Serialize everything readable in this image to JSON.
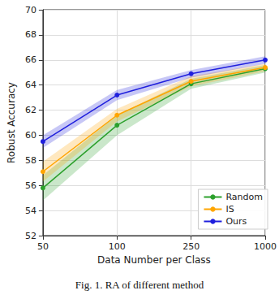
{
  "chart_data": {
    "type": "line",
    "caption": "Fig. 1. RA of different method",
    "x_label": "Data Number per Class",
    "y_label": "Robust Accuracy",
    "categories": [
      "50",
      "100",
      "250",
      "1000"
    ],
    "series": [
      {
        "name": "Random",
        "color": "#2ca02c",
        "values": [
          55.8,
          60.8,
          64.1,
          65.3
        ],
        "errors": [
          1.0,
          0.8,
          0.4,
          0.3
        ]
      },
      {
        "name": "IS",
        "color": "#ffa500",
        "values": [
          57.1,
          61.6,
          64.3,
          65.4
        ],
        "errors": [
          0.8,
          0.5,
          0.4,
          0.3
        ]
      },
      {
        "name": "Ours",
        "color": "#1f1fdd",
        "values": [
          59.5,
          63.2,
          64.9,
          66.0
        ],
        "errors": [
          0.5,
          0.4,
          0.3,
          0.3
        ]
      }
    ],
    "ylim": [
      52,
      70
    ],
    "yticks": [
      52,
      54,
      56,
      58,
      60,
      62,
      64,
      66,
      68,
      70
    ],
    "grid": true,
    "legend": "lower right",
    "marker": "circle"
  }
}
